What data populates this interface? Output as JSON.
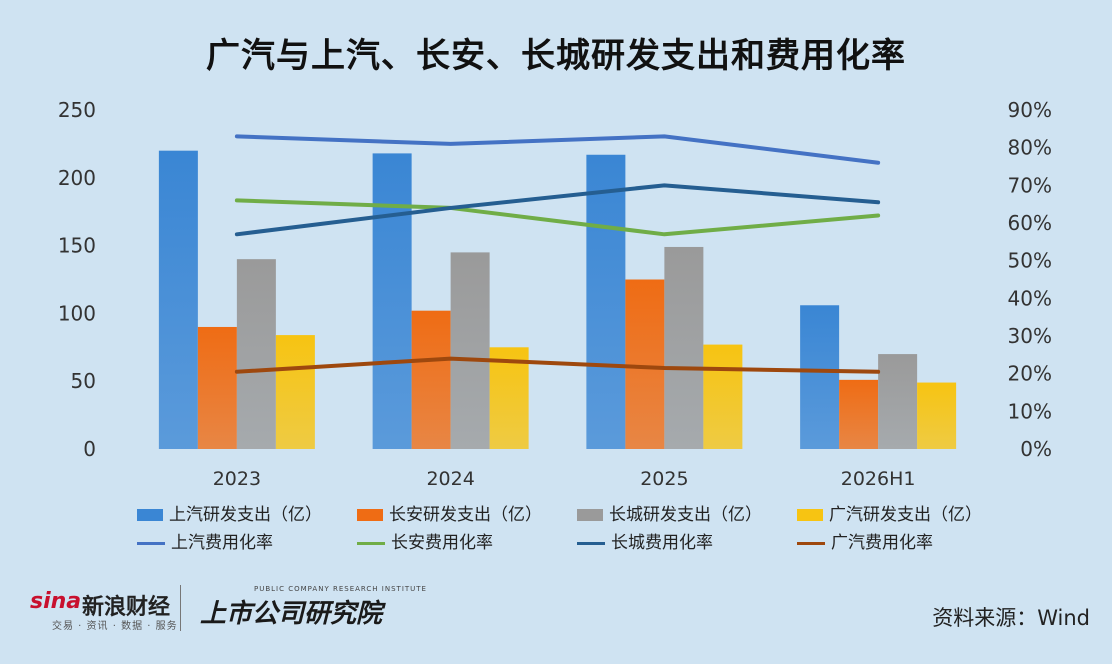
{
  "chart_data": {
    "type": "bar",
    "title": "广汽与上汽、长安、长城研发支出和费用化率",
    "categories": [
      "2023",
      "2024",
      "2025",
      "2026H1"
    ],
    "ylim": [
      0,
      250
    ],
    "yticks": [
      "0",
      "50",
      "100",
      "150",
      "200",
      "250"
    ],
    "y2lim": [
      0,
      0.9
    ],
    "y2ticks": [
      "0%",
      "10%",
      "20%",
      "30%",
      "40%",
      "50%",
      "60%",
      "70%",
      "80%",
      "90%"
    ],
    "grid": false,
    "legend_position": "bottom",
    "bar_series": [
      {
        "name": "上汽研发支出（亿）",
        "color": "#3a86d4",
        "values": [
          220,
          218,
          217,
          106
        ]
      },
      {
        "name": "长安研发支出（亿）",
        "color": "#ef6c14",
        "values": [
          90,
          102,
          125,
          51
        ]
      },
      {
        "name": "长城研发支出（亿）",
        "color": "#9a9a9a",
        "values": [
          140,
          145,
          149,
          70
        ]
      },
      {
        "name": "广汽研发支出（亿）",
        "color": "#f7c412",
        "values": [
          84,
          75,
          77,
          49
        ]
      }
    ],
    "line_series": [
      {
        "name": "上汽费用化率",
        "color": "#4472c4",
        "values": [
          0.83,
          0.81,
          0.83,
          0.76
        ]
      },
      {
        "name": "长安费用化率",
        "color": "#70ad47",
        "values": [
          0.66,
          0.64,
          0.57,
          0.62
        ]
      },
      {
        "name": "长城费用化率",
        "color": "#255e91",
        "values": [
          0.57,
          0.64,
          0.7,
          0.655
        ]
      },
      {
        "name": "广汽费用化率",
        "color": "#9e480e",
        "values": [
          0.205,
          0.24,
          0.215,
          0.205
        ]
      }
    ]
  },
  "branding": {
    "sina_latin": "sina",
    "sina_name": "新浪财经",
    "sina_tagline": "交易 · 资讯 · 数据 · 服务",
    "institute_name": "上市公司研究院",
    "institute_en": "PUBLIC COMPANY RESEARCH INSTITUTE"
  },
  "source": "资料来源：Wind"
}
